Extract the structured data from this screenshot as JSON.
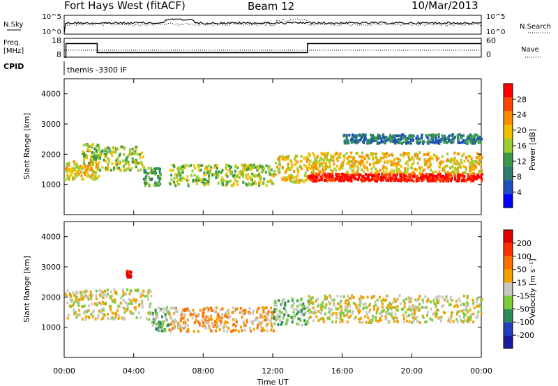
{
  "header": {
    "station": "Fort Hays West (fitACF)",
    "beam": "Beam 12",
    "date": "10/Mar/2013"
  },
  "strips": {
    "sky_label": "N.Sky",
    "sky_ticks": [
      "10^5",
      "10^0"
    ],
    "search_label": "N.Search",
    "search_ticks": [
      "10^5",
      "10^0"
    ],
    "freq_label": "Freq.",
    "freq_unit": "[MHz]",
    "freq_ticks": [
      "18",
      "8"
    ],
    "nave_label": "Nave",
    "nave_ticks": [
      "60",
      "0"
    ],
    "cpid_label": "CPID",
    "cpid_value": "themis -3300 IF"
  },
  "axes": {
    "ylabel": "Slant Range [km]",
    "xlabel": "Time UT",
    "x_ticks": [
      "00:00",
      "04:00",
      "08:00",
      "12:00",
      "16:00",
      "20:00",
      "00:00"
    ],
    "y_ticks": [
      "4000",
      "3000",
      "2000",
      "1000"
    ]
  },
  "power_colorbar": {
    "label": "Power [dB]",
    "ticks": [
      "28",
      "24",
      "20",
      "16",
      "12",
      "8",
      "4"
    ],
    "colors": [
      "#0000ff",
      "#1f4fbf",
      "#2e7d6e",
      "#3a9a4a",
      "#9acd32",
      "#f0c000",
      "#ff8c00",
      "#ff4500",
      "#ff0000"
    ]
  },
  "velocity_colorbar": {
    "label": "Velocity [m s⁻¹]",
    "ticks": [
      "200",
      "100",
      "50",
      "15",
      "-15",
      "-50",
      "-100",
      "-200"
    ],
    "colors": [
      "#1a1aa0",
      "#2040c0",
      "#2e8b57",
      "#7ccd3c",
      "#c8c8c0",
      "#f0a000",
      "#ff7000",
      "#ff3000",
      "#e00000"
    ]
  },
  "chart_data": [
    {
      "type": "line",
      "name": "frequency",
      "x_hours": [
        0,
        0.1,
        1.9,
        14.0,
        24
      ],
      "y_mhz": [
        8,
        15.2,
        10.4,
        15.2,
        15.2
      ],
      "ylim": [
        8,
        18
      ]
    },
    {
      "type": "heatmap",
      "name": "power",
      "x_range_hours": [
        0,
        24
      ],
      "y_range_km": [
        0,
        4500
      ],
      "scatter_bands": [
        {
          "t0": 0.0,
          "t1": 2.0,
          "r0": 1200,
          "r1": 1800,
          "level": 5
        },
        {
          "t0": 1.0,
          "t1": 2.0,
          "r0": 1700,
          "r1": 2400,
          "level": 4
        },
        {
          "t0": 2.0,
          "t1": 4.5,
          "r0": 1500,
          "r1": 2300,
          "level": 4
        },
        {
          "t0": 4.5,
          "t1": 5.5,
          "r0": 1000,
          "r1": 1600,
          "level": 3
        },
        {
          "t0": 6.0,
          "t1": 12.0,
          "r0": 1000,
          "r1": 1700,
          "level": 4
        },
        {
          "t0": 12.0,
          "t1": 14.0,
          "r0": 1100,
          "r1": 2000,
          "level": 5
        },
        {
          "t0": 14.0,
          "t1": 24.0,
          "r0": 1150,
          "r1": 1400,
          "level": 8
        },
        {
          "t0": 14.0,
          "t1": 24.0,
          "r0": 1400,
          "r1": 2100,
          "level": 5
        },
        {
          "t0": 16.0,
          "t1": 24.0,
          "r0": 2400,
          "r1": 2700,
          "level": 2
        }
      ]
    },
    {
      "type": "heatmap",
      "name": "velocity",
      "x_range_hours": [
        0,
        24
      ],
      "y_range_km": [
        0,
        4500
      ],
      "scatter_bands": [
        {
          "t0": 0.0,
          "t1": 5.0,
          "r0": 1300,
          "r1": 2300,
          "level": 4
        },
        {
          "t0": 5.0,
          "t1": 6.0,
          "r0": 900,
          "r1": 1700,
          "level": 3
        },
        {
          "t0": 6.0,
          "t1": 12.0,
          "r0": 900,
          "r1": 1700,
          "level": 5
        },
        {
          "t0": 12.0,
          "t1": 14.0,
          "r0": 1100,
          "r1": 2000,
          "level": 3
        },
        {
          "t0": 14.0,
          "t1": 24.0,
          "r0": 1200,
          "r1": 2100,
          "level": 4
        },
        {
          "t0": 3.5,
          "t1": 3.8,
          "r0": 2700,
          "r1": 2900,
          "level": 8
        }
      ]
    }
  ]
}
